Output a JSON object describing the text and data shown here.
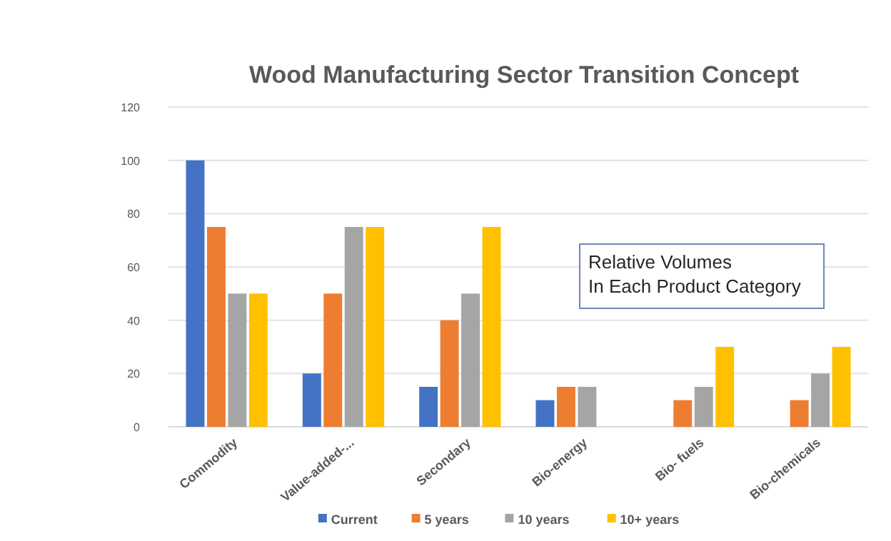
{
  "chart_data": {
    "type": "bar",
    "title": "Wood Manufacturing Sector Transition Concept",
    "categories": [
      "Commodity",
      "Value-added-...",
      "Secondary",
      "Bio-energy",
      "Bio- fuels",
      "Bio-chemicals"
    ],
    "series": [
      {
        "name": "Current",
        "color": "#4472c4",
        "values": [
          100,
          20,
          15,
          10,
          null,
          null
        ]
      },
      {
        "name": "5 years",
        "color": "#ed7d31",
        "values": [
          75,
          50,
          40,
          15,
          10,
          10
        ]
      },
      {
        "name": "10 years",
        "color": "#a5a5a5",
        "values": [
          50,
          75,
          50,
          15,
          15,
          20
        ]
      },
      {
        "name": "10+ years",
        "color": "#ffc000",
        "values": [
          50,
          75,
          75,
          null,
          30,
          30
        ]
      }
    ],
    "ylim": [
      0,
      120
    ],
    "yticks": [
      0,
      20,
      40,
      60,
      80,
      100,
      120
    ],
    "grid": "y",
    "legend": "bottom",
    "annotations": [
      "Relative Volumes\nIn Each Product Category"
    ]
  }
}
